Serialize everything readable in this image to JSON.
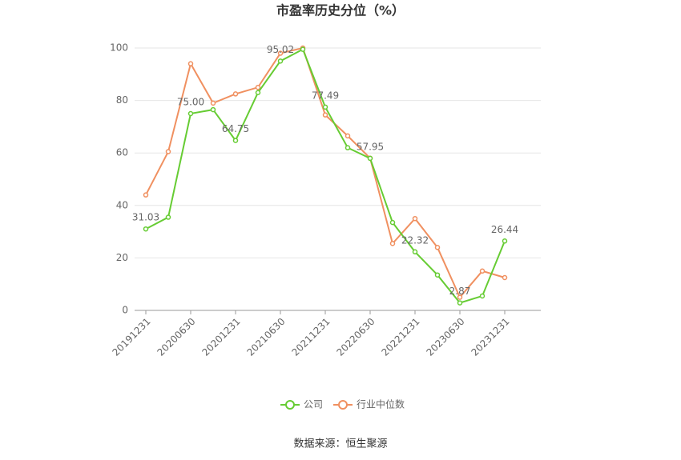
{
  "chart_data": {
    "type": "line",
    "title": "市盈率历史分位（%）",
    "source": "数据来源：恒生聚源",
    "categories": [
      "20191231",
      null,
      "20200630",
      null,
      "20201231",
      null,
      "20210630",
      null,
      "20211231",
      null,
      "20220630",
      null,
      "20221231",
      null,
      "20230630",
      null,
      "20231231"
    ],
    "series": [
      {
        "name": "公司",
        "color": "#66cc33",
        "values": [
          31.03,
          35.5,
          75.0,
          76.5,
          64.75,
          83,
          95.02,
          99.5,
          77.49,
          62,
          57.95,
          33.5,
          22.32,
          13.5,
          2.87,
          5.5,
          26.44
        ],
        "value_labels": [
          "31.03",
          null,
          "75.00",
          null,
          "64.75",
          null,
          "95.02",
          null,
          "77.49",
          null,
          "57.95",
          null,
          "22.32",
          null,
          "2.87",
          null,
          "26.44"
        ]
      },
      {
        "name": "行业中位数",
        "color": "#f09060",
        "values": [
          44,
          60.5,
          94,
          79,
          82.5,
          85,
          98,
          100,
          74.5,
          66.5,
          58,
          25.5,
          35,
          24,
          5,
          15,
          12.5
        ]
      }
    ],
    "ylim": [
      0,
      100
    ],
    "yticks": [
      0,
      20,
      40,
      60,
      80,
      100
    ],
    "grid": true
  }
}
